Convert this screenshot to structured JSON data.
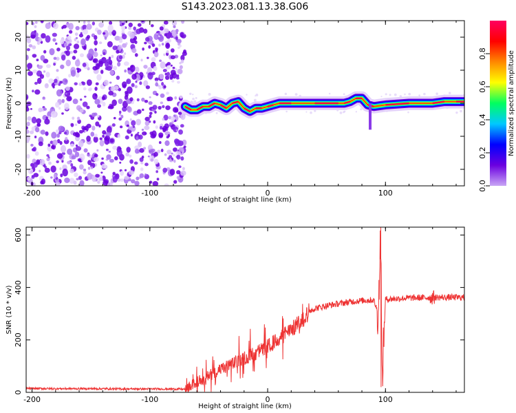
{
  "figure": {
    "title": "S143.2023.081.13.38.G06"
  },
  "chart_data": [
    {
      "type": "heatmap",
      "title": "S143.2023.081.13.38.G06",
      "xlabel": "Height of straight line (km)",
      "ylabel": "Frequency (Hz)",
      "xlim": [
        -205,
        167
      ],
      "ylim": [
        -25,
        25
      ],
      "xticks": [
        -200,
        -100,
        0,
        100
      ],
      "yticks": [
        -20,
        -10,
        0,
        10,
        20
      ],
      "xtick_labels": [
        "-200",
        "-100",
        "0",
        "100"
      ],
      "ytick_labels": [
        "-20",
        "-10",
        "0",
        "10",
        "20"
      ],
      "noise_region_x": [
        -205,
        -70
      ],
      "signal_frequency_trace": [
        {
          "x": -70,
          "y": -1.0
        },
        {
          "x": -65,
          "y": -2.0
        },
        {
          "x": -60,
          "y": -2.0
        },
        {
          "x": -55,
          "y": -1.0
        },
        {
          "x": -50,
          "y": -1.0
        },
        {
          "x": -45,
          "y": 0.0
        },
        {
          "x": -40,
          "y": -0.5
        },
        {
          "x": -35,
          "y": -1.5
        },
        {
          "x": -30,
          "y": 0.0
        },
        {
          "x": -25,
          "y": 0.5
        },
        {
          "x": -20,
          "y": -1.5
        },
        {
          "x": -15,
          "y": -2.5
        },
        {
          "x": -10,
          "y": -1.5
        },
        {
          "x": -5,
          "y": -1.5
        },
        {
          "x": 0,
          "y": -1.0
        },
        {
          "x": 5,
          "y": -0.5
        },
        {
          "x": 10,
          "y": 0.0
        },
        {
          "x": 20,
          "y": 0.0
        },
        {
          "x": 40,
          "y": 0.0
        },
        {
          "x": 60,
          "y": 0.0
        },
        {
          "x": 65,
          "y": 0.0
        },
        {
          "x": 70,
          "y": 0.5
        },
        {
          "x": 75,
          "y": 1.5
        },
        {
          "x": 80,
          "y": 1.5
        },
        {
          "x": 85,
          "y": -0.5
        },
        {
          "x": 90,
          "y": -1.0
        },
        {
          "x": 100,
          "y": -0.5
        },
        {
          "x": 120,
          "y": 0.0
        },
        {
          "x": 140,
          "y": 0.0
        },
        {
          "x": 150,
          "y": 0.5
        },
        {
          "x": 160,
          "y": 0.5
        },
        {
          "x": 167,
          "y": 0.5
        }
      ],
      "colorbar": {
        "label": "Normalized spectral amplitude",
        "range": [
          0,
          1
        ],
        "ticks": [
          "0.0",
          "0.2",
          "0.4",
          "0.6",
          "0.8"
        ],
        "colors": [
          "#c9a6f5",
          "#6b00e0",
          "#0000ff",
          "#00c8ff",
          "#00ff60",
          "#ffff00",
          "#ff8800",
          "#ff0000",
          "#ff0060"
        ]
      }
    },
    {
      "type": "line",
      "xlabel": "Height of straight line (km)",
      "ylabel": "SNR (10 * v/v)",
      "xlim": [
        -205,
        167
      ],
      "ylim": [
        0,
        630
      ],
      "xticks": [
        -200,
        -100,
        0,
        100
      ],
      "yticks": [
        0,
        200,
        400,
        600
      ],
      "xtick_labels": [
        "-200",
        "-100",
        "0",
        "100"
      ],
      "ytick_labels": [
        "0",
        "200",
        "400",
        "600"
      ],
      "color": "#ee3333",
      "series": [
        {
          "name": "SNR",
          "points": [
            {
              "x": -205,
              "y": 15
            },
            {
              "x": -180,
              "y": 14
            },
            {
              "x": -150,
              "y": 14
            },
            {
              "x": -120,
              "y": 13
            },
            {
              "x": -90,
              "y": 13
            },
            {
              "x": -70,
              "y": 12
            },
            {
              "x": -60,
              "y": 40
            },
            {
              "x": -50,
              "y": 65
            },
            {
              "x": -40,
              "y": 85
            },
            {
              "x": -30,
              "y": 110
            },
            {
              "x": -20,
              "y": 130
            },
            {
              "x": -10,
              "y": 150
            },
            {
              "x": 0,
              "y": 175
            },
            {
              "x": 10,
              "y": 205
            },
            {
              "x": 20,
              "y": 240
            },
            {
              "x": 30,
              "y": 275
            },
            {
              "x": 35,
              "y": 310
            },
            {
              "x": 40,
              "y": 320
            },
            {
              "x": 50,
              "y": 330
            },
            {
              "x": 60,
              "y": 338
            },
            {
              "x": 70,
              "y": 345
            },
            {
              "x": 80,
              "y": 350
            },
            {
              "x": 90,
              "y": 352
            },
            {
              "x": 94,
              "y": 300
            },
            {
              "x": 96,
              "y": 630
            },
            {
              "x": 97,
              "y": 30
            },
            {
              "x": 100,
              "y": 355
            },
            {
              "x": 120,
              "y": 360
            },
            {
              "x": 140,
              "y": 362
            },
            {
              "x": 155,
              "y": 362
            },
            {
              "x": 167,
              "y": 362
            }
          ]
        }
      ]
    }
  ]
}
